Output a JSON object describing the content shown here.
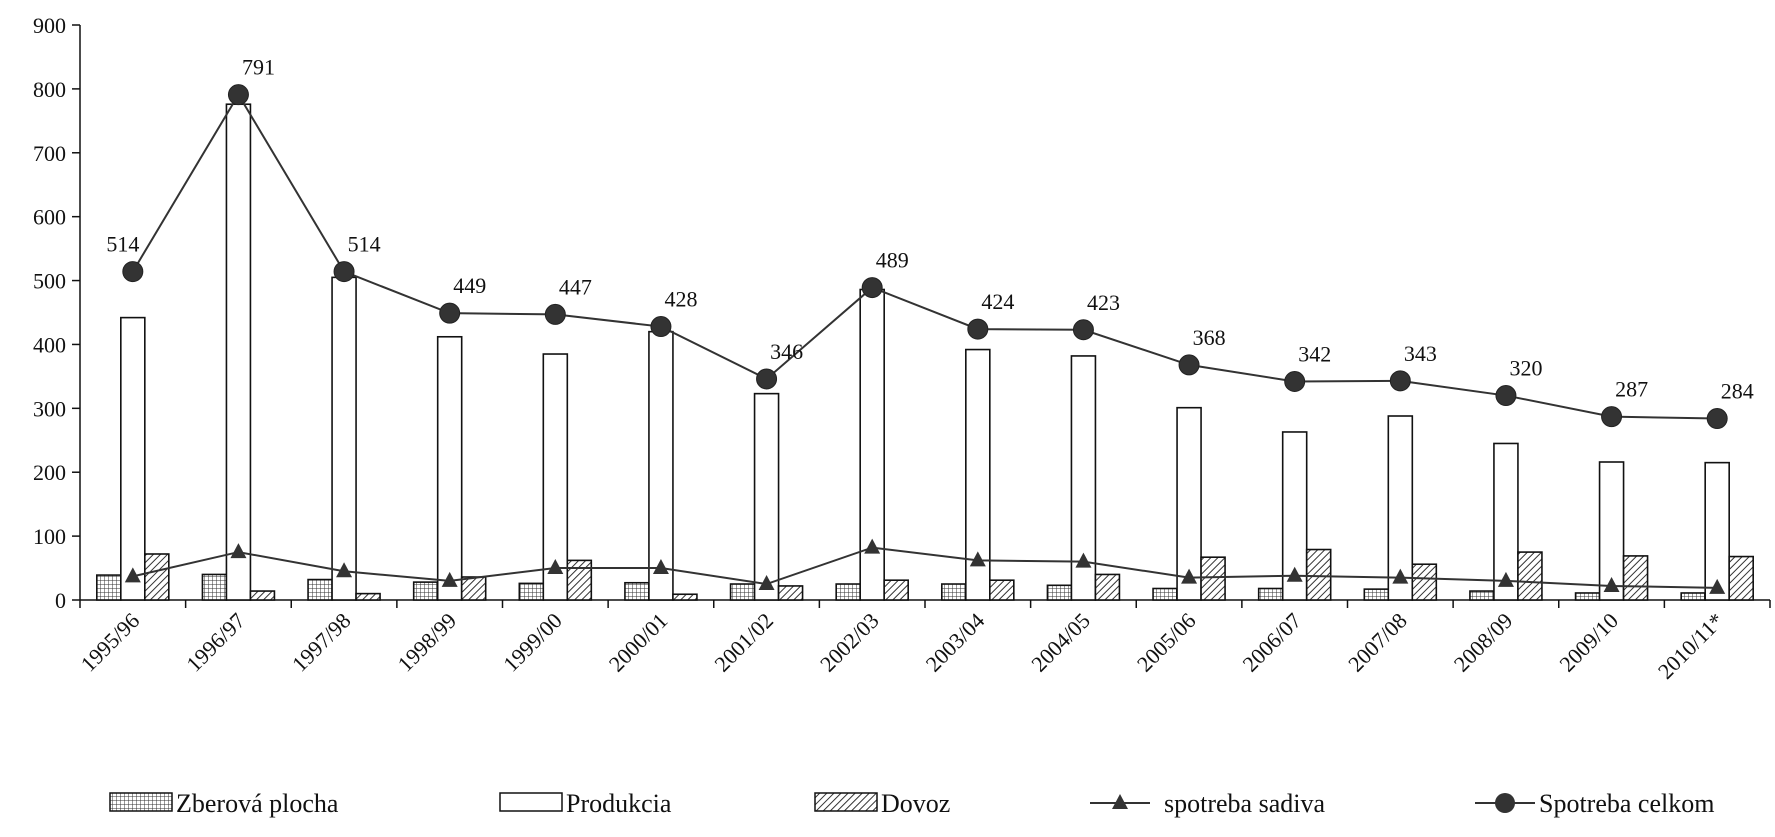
{
  "chart_data": {
    "type": "bar",
    "categories": [
      "1995/96",
      "1996/97",
      "1997/98",
      "1998/99",
      "1999/00",
      "2000/01",
      "2001/02",
      "2002/03",
      "2003/04",
      "2004/05",
      "2005/06",
      "2006/07",
      "2007/08",
      "2008/09",
      "2009/10",
      "2010/11*"
    ],
    "ylim": [
      0,
      900
    ],
    "yticks": [
      0,
      100,
      200,
      300,
      400,
      500,
      600,
      700,
      800,
      900
    ],
    "grid": false,
    "legend_position": "bottom",
    "series": [
      {
        "name": "Zberová plocha",
        "type": "bar",
        "pattern": "grid",
        "values": [
          39,
          40,
          32,
          28,
          26,
          27,
          25,
          25,
          25,
          23,
          18,
          18,
          17,
          14,
          11,
          11
        ]
      },
      {
        "name": "Produkcia",
        "type": "bar",
        "pattern": "empty",
        "values": [
          442,
          776,
          505,
          412,
          385,
          420,
          323,
          486,
          392,
          382,
          301,
          263,
          288,
          245,
          216,
          215
        ]
      },
      {
        "name": "Dovoz",
        "type": "bar",
        "pattern": "diagonal",
        "values": [
          72,
          14,
          10,
          36,
          62,
          9,
          22,
          31,
          31,
          40,
          67,
          79,
          56,
          75,
          69,
          68
        ]
      },
      {
        "name": "spotreba sadiva",
        "type": "line",
        "marker": "triangle",
        "values": [
          37,
          75,
          45,
          30,
          50,
          50,
          25,
          82,
          62,
          60,
          35,
          38,
          35,
          30,
          22,
          19
        ]
      },
      {
        "name": "Spotreba celkom",
        "type": "line",
        "marker": "circle",
        "values": [
          514,
          791,
          514,
          449,
          447,
          428,
          346,
          489,
          424,
          423,
          368,
          342,
          343,
          320,
          287,
          284
        ]
      }
    ],
    "data_labels": [
      "514",
      "791",
      "514",
      "449",
      "447",
      "428",
      "346",
      "489",
      "424",
      "423",
      "368",
      "342",
      "343",
      "320",
      "287",
      "284"
    ]
  }
}
